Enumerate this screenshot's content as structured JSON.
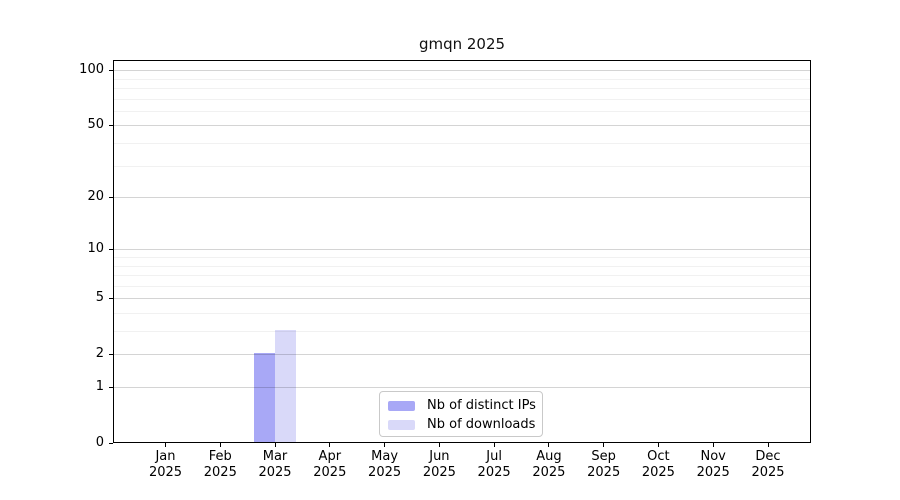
{
  "chart_data": {
    "type": "bar",
    "title": "gmqn 2025",
    "x_months": [
      "Jan",
      "Feb",
      "Mar",
      "Apr",
      "May",
      "Jun",
      "Jul",
      "Aug",
      "Sep",
      "Oct",
      "Nov",
      "Dec"
    ],
    "x_year": "2025",
    "series": [
      {
        "name": "Nb of distinct IPs",
        "color": "#a8a8f6",
        "values": [
          0,
          0,
          2,
          0,
          0,
          0,
          0,
          0,
          0,
          0,
          0,
          0
        ]
      },
      {
        "name": "Nb of downloads",
        "color": "#d9d9f9",
        "values": [
          0,
          0,
          3,
          0,
          0,
          0,
          0,
          0,
          0,
          0,
          0,
          0
        ]
      }
    ],
    "y_scale": "log1p",
    "y_ticks": [
      0,
      1,
      2,
      5,
      10,
      20,
      50,
      100
    ],
    "y_minor_ticks": [
      3,
      4,
      6,
      7,
      8,
      9,
      30,
      40,
      60,
      70,
      80,
      90
    ],
    "ylim": [
      0,
      113.5
    ],
    "grid": "horizontal, drawn above bars",
    "legend_position": "lower-center",
    "colors": {
      "spine": "#000000",
      "grid_major": "#cfcfcf",
      "grid_minor": "#ededed"
    }
  }
}
